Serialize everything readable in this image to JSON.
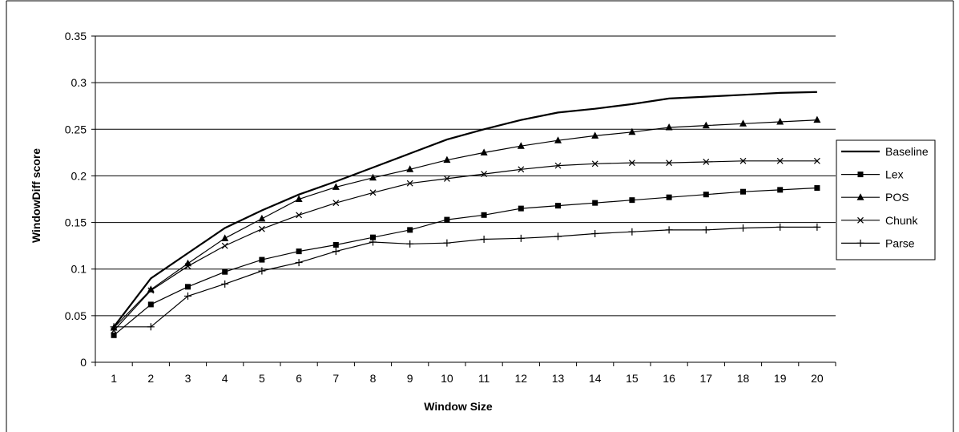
{
  "chart_data": {
    "type": "line",
    "title": "",
    "xlabel": "Window Size",
    "ylabel": "WindowDiff score",
    "categories": [
      1,
      2,
      3,
      4,
      5,
      6,
      7,
      8,
      9,
      10,
      11,
      12,
      13,
      14,
      15,
      16,
      17,
      18,
      19,
      20
    ],
    "ylim": [
      0,
      0.35
    ],
    "yticks": [
      "0",
      "0.05",
      "0.1",
      "0.15",
      "0.2",
      "0.25",
      "0.3",
      "0.35"
    ],
    "grid": true,
    "legend_position": "right",
    "series": [
      {
        "name": "Baseline",
        "marker": "none",
        "stroke_width": 2.2,
        "values": [
          0.038,
          0.09,
          0.117,
          0.144,
          0.163,
          0.18,
          0.194,
          0.209,
          0.224,
          0.239,
          0.25,
          0.26,
          0.268,
          0.272,
          0.277,
          0.283,
          0.285,
          0.287,
          0.289,
          0.29
        ]
      },
      {
        "name": "Lex",
        "marker": "square",
        "stroke_width": 1.2,
        "values": [
          0.029,
          0.062,
          0.081,
          0.097,
          0.11,
          0.119,
          0.126,
          0.134,
          0.142,
          0.153,
          0.158,
          0.165,
          0.168,
          0.171,
          0.174,
          0.177,
          0.18,
          0.183,
          0.185,
          0.187
        ]
      },
      {
        "name": "POS",
        "marker": "triangle",
        "stroke_width": 1.2,
        "values": [
          0.037,
          0.078,
          0.106,
          0.133,
          0.154,
          0.175,
          0.188,
          0.198,
          0.207,
          0.217,
          0.225,
          0.232,
          0.238,
          0.243,
          0.247,
          0.252,
          0.254,
          0.256,
          0.258,
          0.26
        ]
      },
      {
        "name": "Chunk",
        "marker": "x",
        "stroke_width": 1.2,
        "values": [
          0.034,
          0.077,
          0.103,
          0.125,
          0.143,
          0.158,
          0.171,
          0.182,
          0.192,
          0.197,
          0.202,
          0.207,
          0.211,
          0.213,
          0.214,
          0.214,
          0.215,
          0.216,
          0.216,
          0.216
        ]
      },
      {
        "name": "Parse",
        "marker": "plus",
        "stroke_width": 1.2,
        "values": [
          0.038,
          0.038,
          0.071,
          0.084,
          0.098,
          0.107,
          0.119,
          0.129,
          0.127,
          0.128,
          0.132,
          0.133,
          0.135,
          0.138,
          0.14,
          0.142,
          0.142,
          0.144,
          0.145,
          0.145
        ]
      }
    ]
  }
}
